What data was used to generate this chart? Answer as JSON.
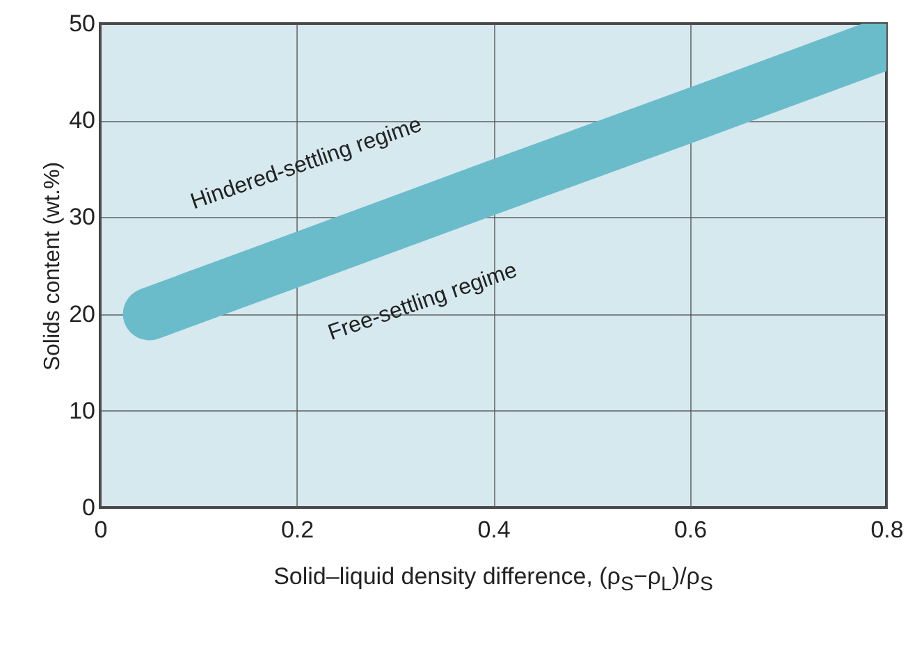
{
  "chart_data": {
    "type": "line",
    "xlabel": "Solid–liquid density difference, (ρ$_{S}$−ρ$_{L}$)/ρ$_{S}$",
    "ylabel": "Solids content (wt.%)",
    "x": [
      0.05,
      0.2,
      0.4,
      0.6,
      0.8
    ],
    "series": [
      {
        "color": "#6bbccb",
        "values": [
          20,
          25.6,
          33.1,
          40.5,
          48
        ]
      }
    ],
    "xlim": [
      0,
      0.8
    ],
    "xticks": [
      0,
      0.2,
      0.4,
      0.6,
      0.8
    ],
    "ylim": [
      0,
      50
    ],
    "yticks": [
      0,
      10,
      20,
      30,
      40,
      50
    ],
    "grid": true,
    "annotations": [
      "Hindered-settling regime",
      "Free-settling regime"
    ]
  }
}
